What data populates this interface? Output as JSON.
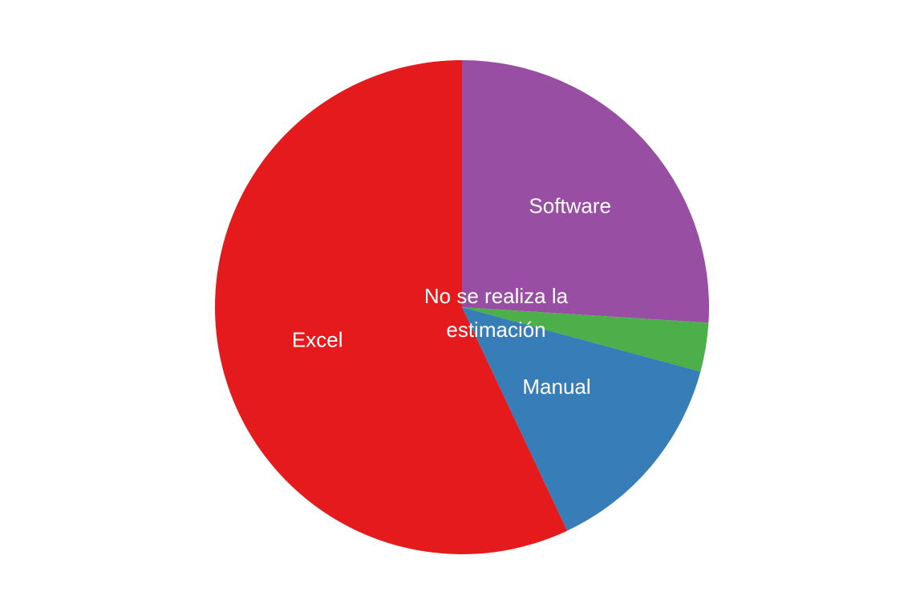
{
  "chart_data": {
    "type": "pie",
    "title": "",
    "slices": [
      {
        "label": "Software",
        "value": 26.0,
        "color": "#984EA3",
        "label_lines": [
          "Software"
        ]
      },
      {
        "label": "No se realiza la estimación",
        "value": 3.2,
        "color": "#4DAF4A",
        "label_lines": [
          "No se realiza la",
          "estimación"
        ]
      },
      {
        "label": "Manual",
        "value": 13.8,
        "color": "#377EB8",
        "label_lines": [
          "Manual"
        ]
      },
      {
        "label": "Excel",
        "value": 57.0,
        "color": "#E41A1C",
        "label_lines": [
          "Excel"
        ]
      }
    ],
    "start": "12 o'clock",
    "direction": "clockwise",
    "legend": "none",
    "labels_inside": true
  }
}
